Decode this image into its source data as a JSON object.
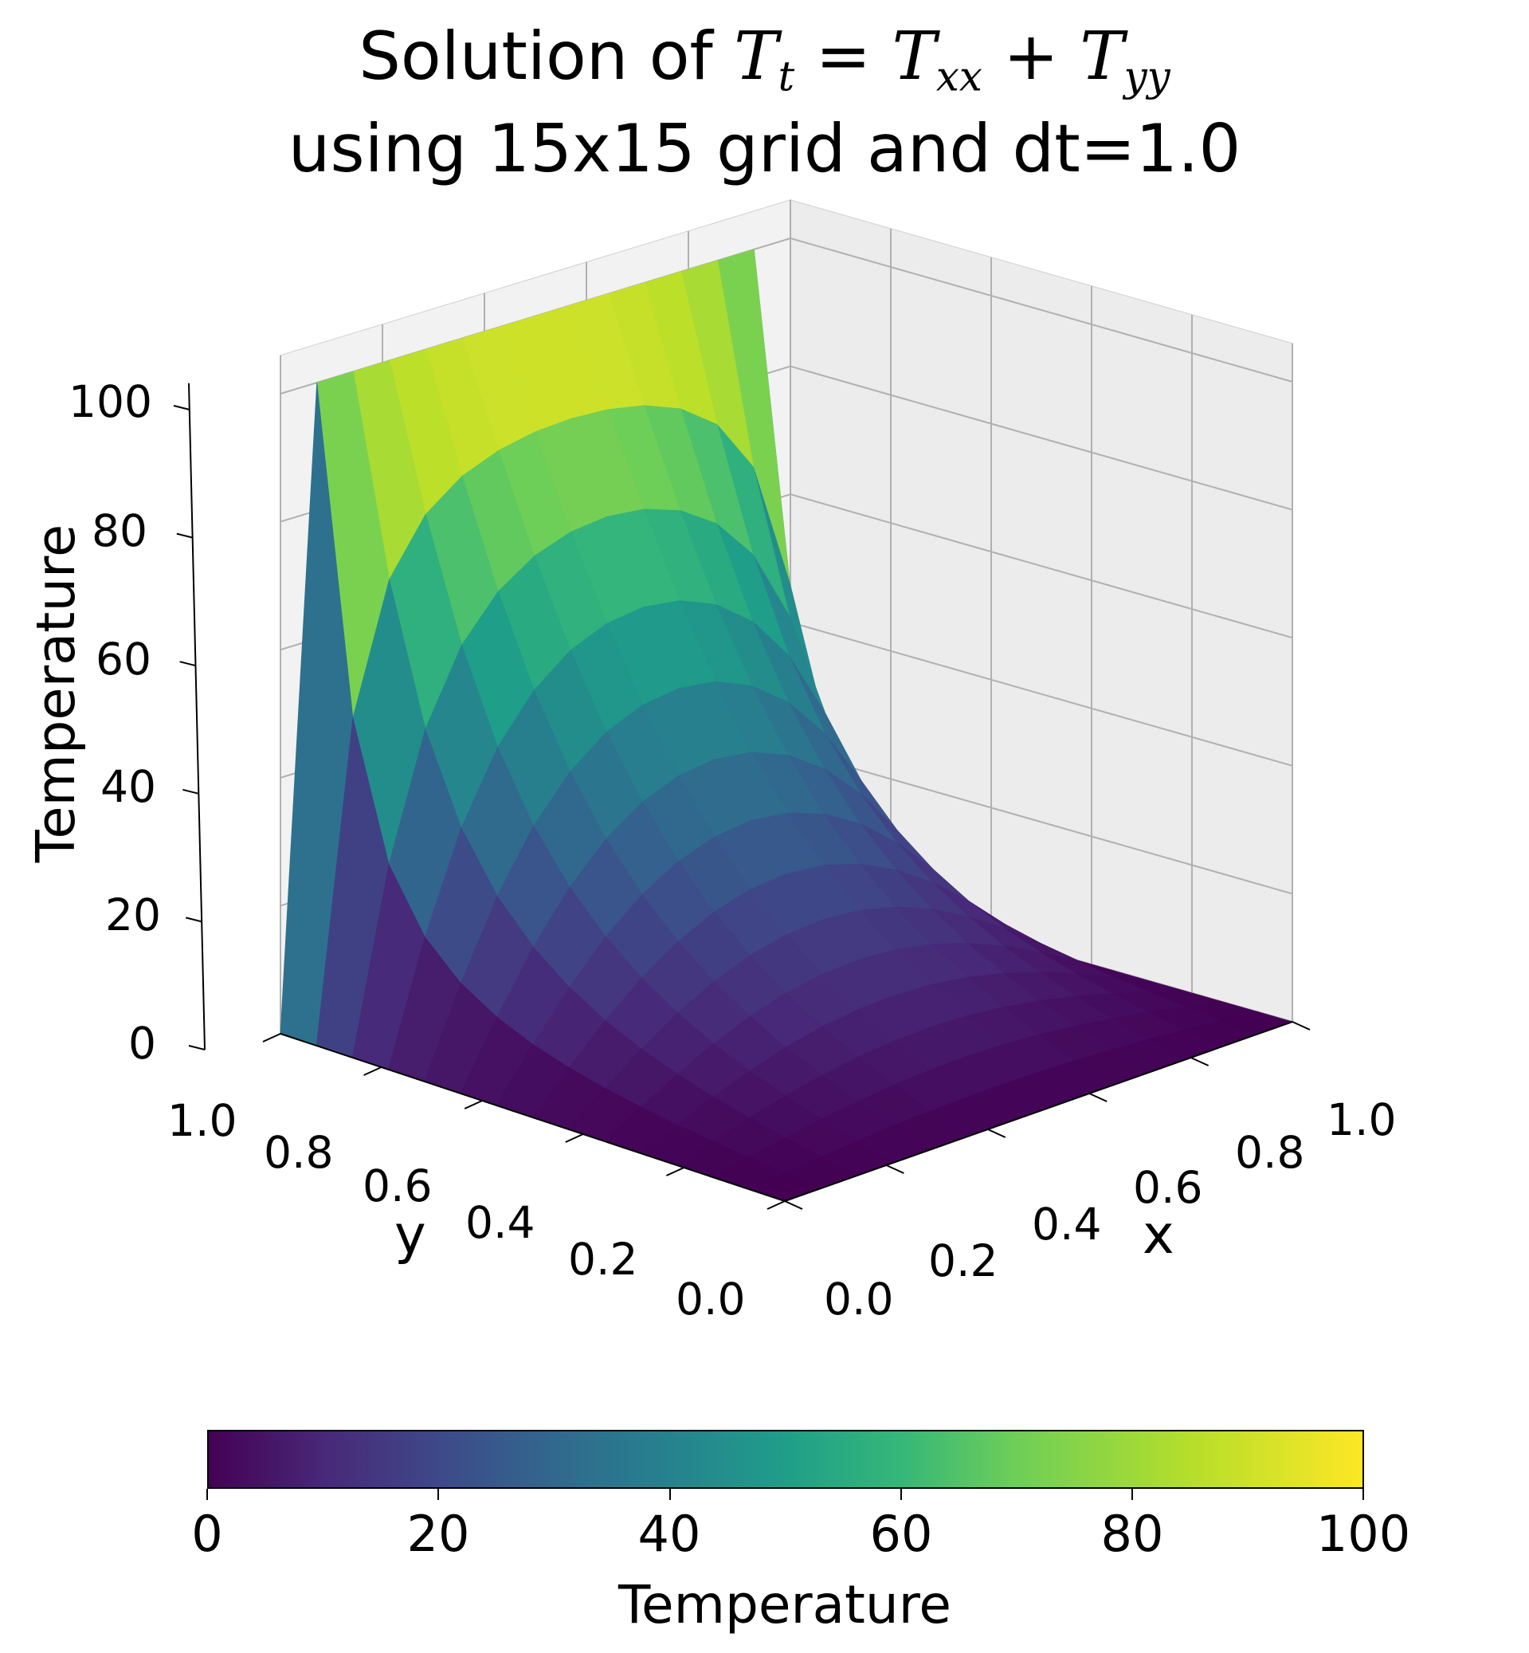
{
  "figure": {
    "title_prefix": "Solution of ",
    "title_T": "T",
    "title_t": "t",
    "title_eq": " = ",
    "title_xx": "xx",
    "title_plus": " + ",
    "title_yy": "yy",
    "title_line2": "using 15x15 grid and dt=1.0"
  },
  "chart_data": {
    "type": "surface",
    "title": "Solution of T_t = T_xx + T_yy using 15x15 grid and dt=1.0",
    "xlabel": "x",
    "ylabel": "y",
    "zlabel": "Temperature",
    "grid_size": [
      15,
      15
    ],
    "x_range": [
      0.0,
      1.0
    ],
    "y_range": [
      0.0,
      1.0
    ],
    "z_range": [
      0,
      100
    ],
    "x_ticks": [
      "0.0",
      "0.2",
      "0.4",
      "0.6",
      "0.8",
      "1.0"
    ],
    "y_ticks": [
      "0.0",
      "0.2",
      "0.4",
      "0.6",
      "0.8",
      "1.0"
    ],
    "z_ticks": [
      "0",
      "20",
      "40",
      "60",
      "80",
      "100"
    ],
    "boundary_conditions": {
      "y=1": 100,
      "y=0": 0,
      "x=0": 0,
      "x=1": 0
    },
    "colormap": "viridis",
    "colormap_stops": [
      "#440154",
      "#482878",
      "#3e4989",
      "#31688e",
      "#26828e",
      "#1f9e89",
      "#35b779",
      "#6ece58",
      "#b5de2b",
      "#fde725"
    ],
    "colorbar": {
      "orientation": "horizontal",
      "label": "Temperature",
      "ticks": [
        "0",
        "20",
        "40",
        "60",
        "80",
        "100"
      ],
      "range": [
        0,
        100
      ]
    },
    "grid": true
  }
}
